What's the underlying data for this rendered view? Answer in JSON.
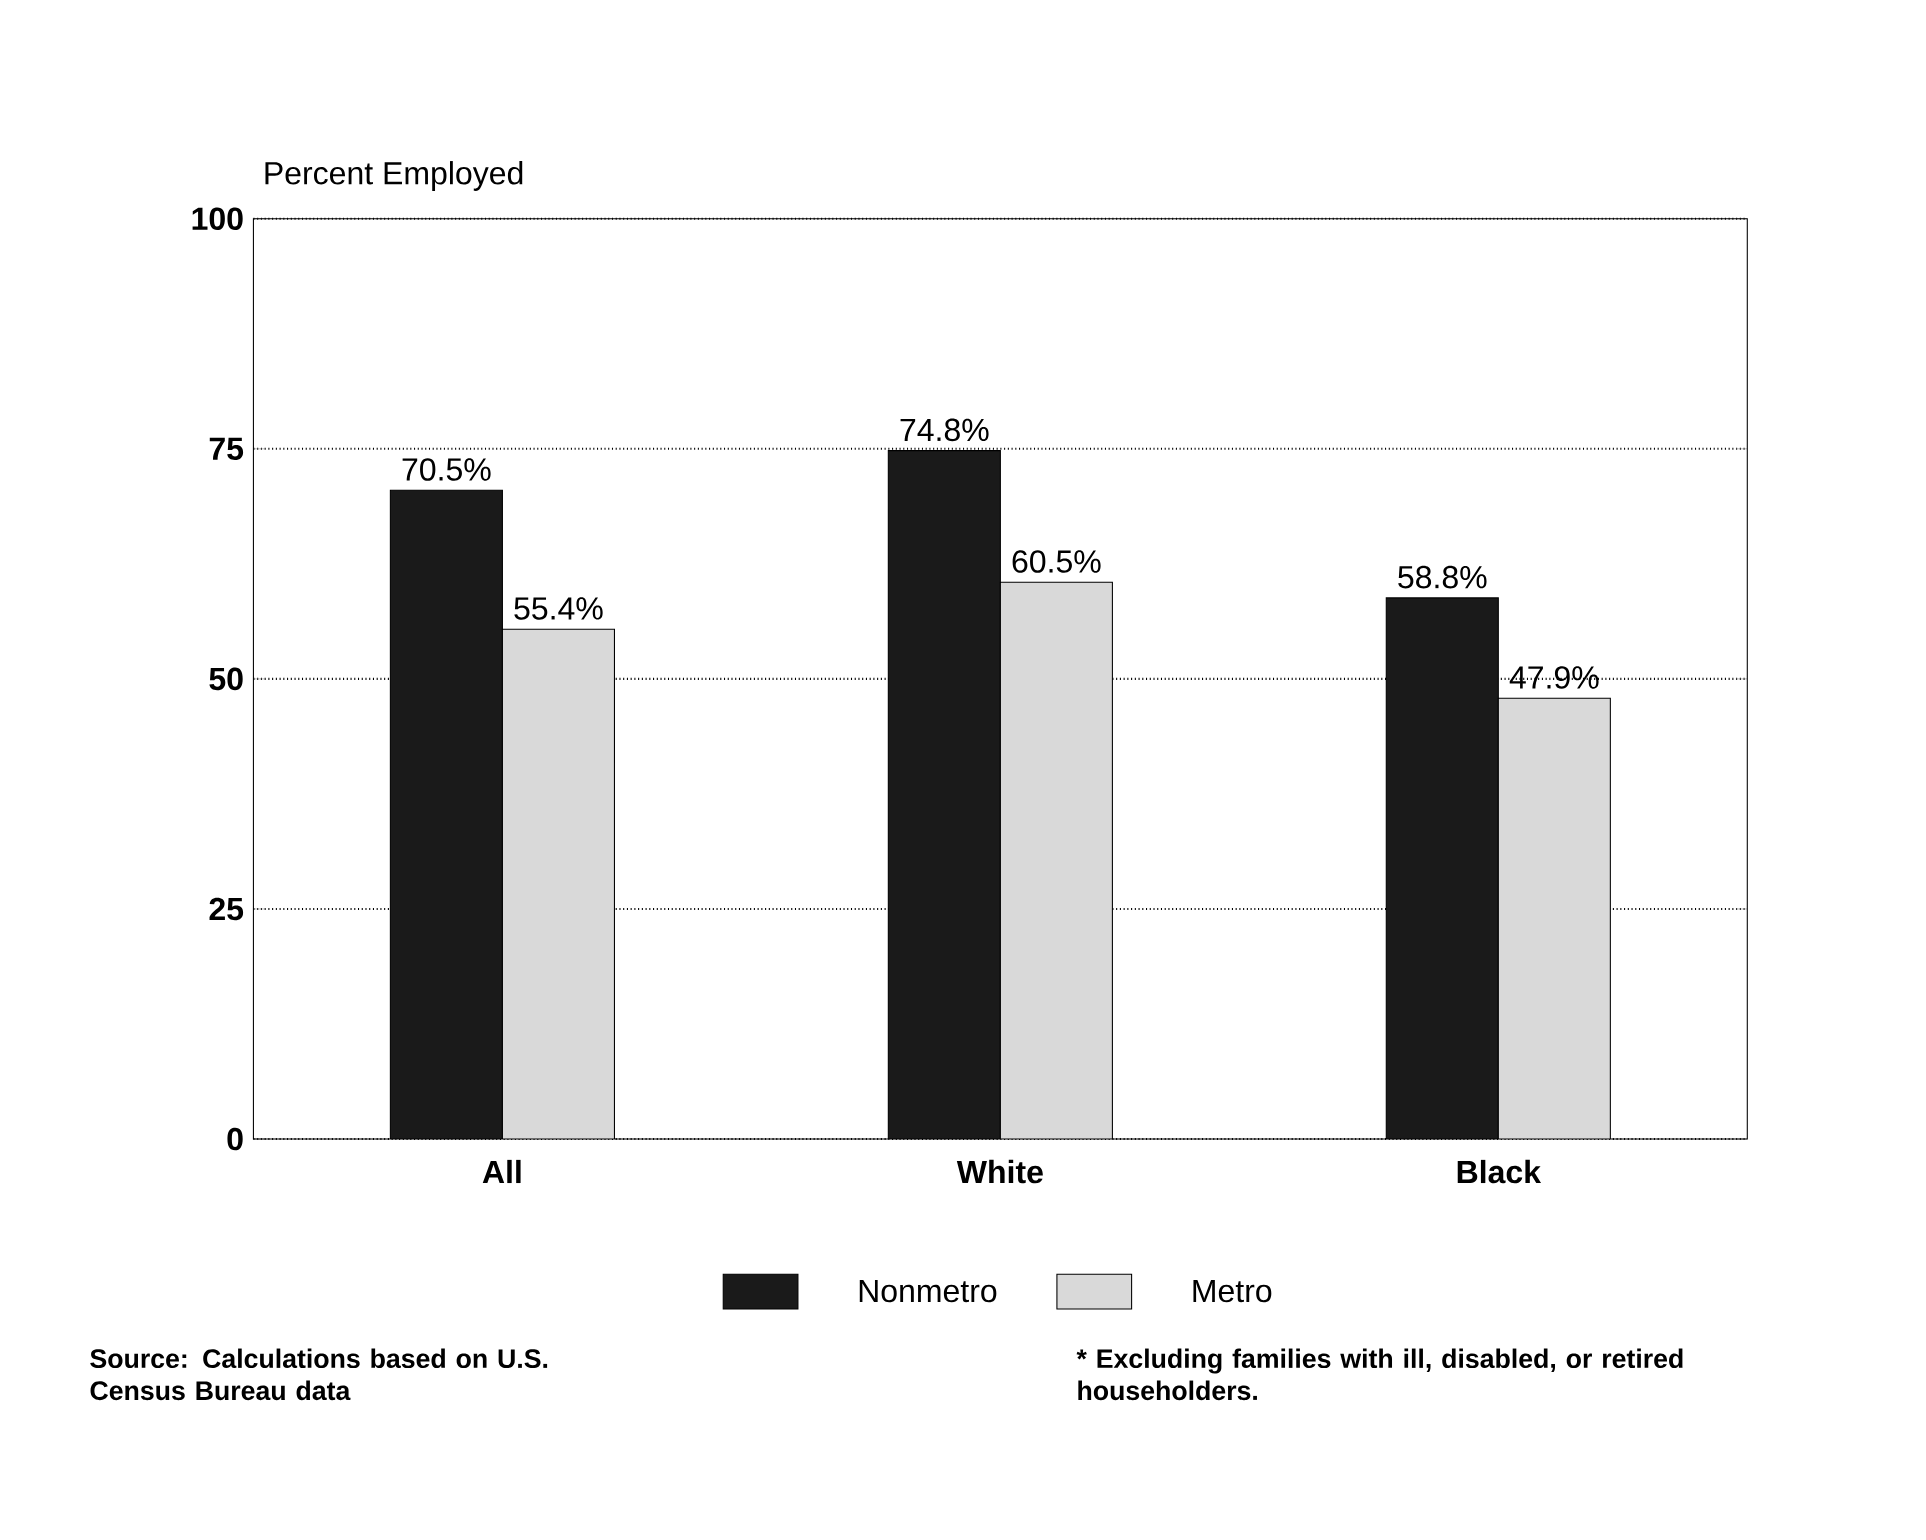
{
  "chart_data": {
    "type": "bar",
    "ylabel": "Percent Employed",
    "categories": [
      "All",
      "White",
      "Black"
    ],
    "series": [
      {
        "name": "Nonmetro",
        "color": "#1a1a1a",
        "values": [
          70.5,
          74.8,
          58.8
        ],
        "value_labels": [
          "70.5%",
          "74.8%",
          "58.8%"
        ]
      },
      {
        "name": "Metro",
        "color": "#d9d9d9",
        "values": [
          55.4,
          60.5,
          47.9
        ],
        "value_labels": [
          "55.4%",
          "60.5%",
          "47.9%"
        ]
      }
    ],
    "ylim": [
      0,
      100
    ],
    "yticks": [
      0,
      25,
      50,
      75,
      100
    ],
    "grid": "y",
    "legend": "bottom",
    "annotations": [
      "Source: Calculations based on U.S. Census Bureau data",
      "* Excluding families with ill, disabled, or retired householders."
    ]
  }
}
